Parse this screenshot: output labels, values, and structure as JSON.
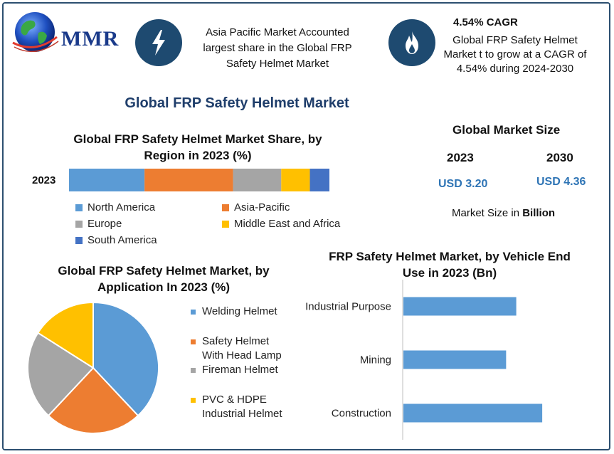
{
  "logo": {
    "text": "MMR"
  },
  "header": {
    "left_text": "Asia Pacific Market Accounted largest share in the Global FRP Safety Helmet Market",
    "cagr_title": "4.54% CAGR",
    "cagr_text": "Global FRP Safety Helmet Market t to grow at a CAGR of 4.54% during 2024-2030",
    "left_icon": "lightning-icon",
    "right_icon": "flame-icon"
  },
  "main_title": "Global FRP Safety Helmet Market",
  "market_size": {
    "title": "Global Market Size",
    "year1": "2023",
    "year2": "2030",
    "value1": "USD 3.20",
    "value2": "USD 4.36",
    "note_prefix": "Market Size in ",
    "note_bold": "Billion"
  },
  "colors": {
    "blue": "#5b9bd5",
    "orange": "#ed7d31",
    "gray": "#a5a5a5",
    "yellow": "#ffc000",
    "darkblue": "#4472c4",
    "icon_bg": "#1e4a70"
  },
  "chart_data": [
    {
      "type": "bar",
      "orientation": "horizontal-stacked",
      "title": "Global FRP Safety Helmet Market Share, by Region in 2023 (%)",
      "categories": [
        "2023"
      ],
      "series": [
        {
          "name": "North America",
          "values": [
            29
          ],
          "color": "#5b9bd5"
        },
        {
          "name": "Asia-Pacific",
          "values": [
            34
          ],
          "color": "#ed7d31"
        },
        {
          "name": "Europe",
          "values": [
            18.5
          ],
          "color": "#a5a5a5"
        },
        {
          "name": "Middle East and Africa",
          "values": [
            11
          ],
          "color": "#ffc000"
        },
        {
          "name": "South America",
          "values": [
            7.5
          ],
          "color": "#4472c4"
        }
      ],
      "legend": "bottom"
    },
    {
      "type": "pie",
      "title": "Global FRP Safety Helmet Market, by Application In 2023 (%)",
      "labels": [
        "Welding Helmet",
        "Safety Helmet With Head Lamp",
        "Fireman Helmet",
        "PVC & HDPE Industrial Helmet"
      ],
      "label_lines": [
        [
          "Welding Helmet"
        ],
        [
          "Safety Helmet",
          "With Head Lamp"
        ],
        [
          "Fireman Helmet"
        ],
        [
          "PVC & HDPE",
          "Industrial Helmet"
        ]
      ],
      "values": [
        38,
        24,
        22,
        16
      ],
      "colors": [
        "#5b9bd5",
        "#ed7d31",
        "#a5a5a5",
        "#ffc000"
      ],
      "legend": "right"
    },
    {
      "type": "bar",
      "orientation": "horizontal",
      "title": "FRP Safety Helmet Market, by Vehicle End Use in 2023 (Bn)",
      "categories": [
        "Industrial Purpose",
        "Mining",
        "Construction"
      ],
      "values": [
        1.0,
        0.91,
        1.23
      ],
      "color": "#5b9bd5",
      "xlim": [
        0,
        1.45
      ]
    }
  ]
}
